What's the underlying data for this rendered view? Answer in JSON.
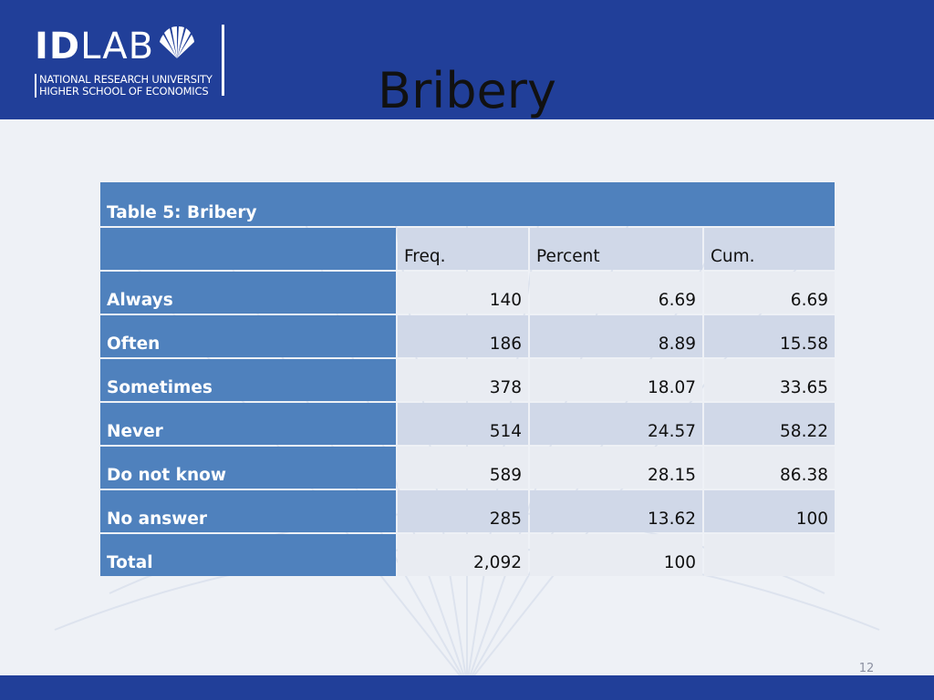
{
  "header": {
    "logo": {
      "id_text": "ID",
      "lab_text": "LAB",
      "line1": "NATIONAL RESEARCH UNIVERSITY",
      "line2": "HIGHER SCHOOL OF ECONOMICS"
    },
    "title": "Bribery"
  },
  "table": {
    "caption": "Table 5: Bribery",
    "columns": [
      "",
      "Freq.",
      "Percent",
      "Cum."
    ],
    "rows": [
      {
        "label": "Always",
        "freq": "140",
        "percent": "6.69",
        "cum": "6.69"
      },
      {
        "label": "Often",
        "freq": "186",
        "percent": "8.89",
        "cum": "15.58"
      },
      {
        "label": "Sometimes",
        "freq": "378",
        "percent": "18.07",
        "cum": "33.65"
      },
      {
        "label": "Never",
        "freq": "514",
        "percent": "24.57",
        "cum": "58.22"
      },
      {
        "label": "Do not know",
        "freq": "589",
        "percent": "28.15",
        "cum": "86.38"
      },
      {
        "label": "No answer",
        "freq": "285",
        "percent": "13.62",
        "cum": "100"
      },
      {
        "label": "Total",
        "freq": "2,092",
        "percent": "100",
        "cum": ""
      }
    ]
  },
  "footer": {
    "page_number": "12"
  },
  "colors": {
    "header_bg": "#213f99",
    "row_header_bg": "#4f81bd",
    "cell_light": "#e9ecf2",
    "cell_dark": "#d0d8e8"
  }
}
